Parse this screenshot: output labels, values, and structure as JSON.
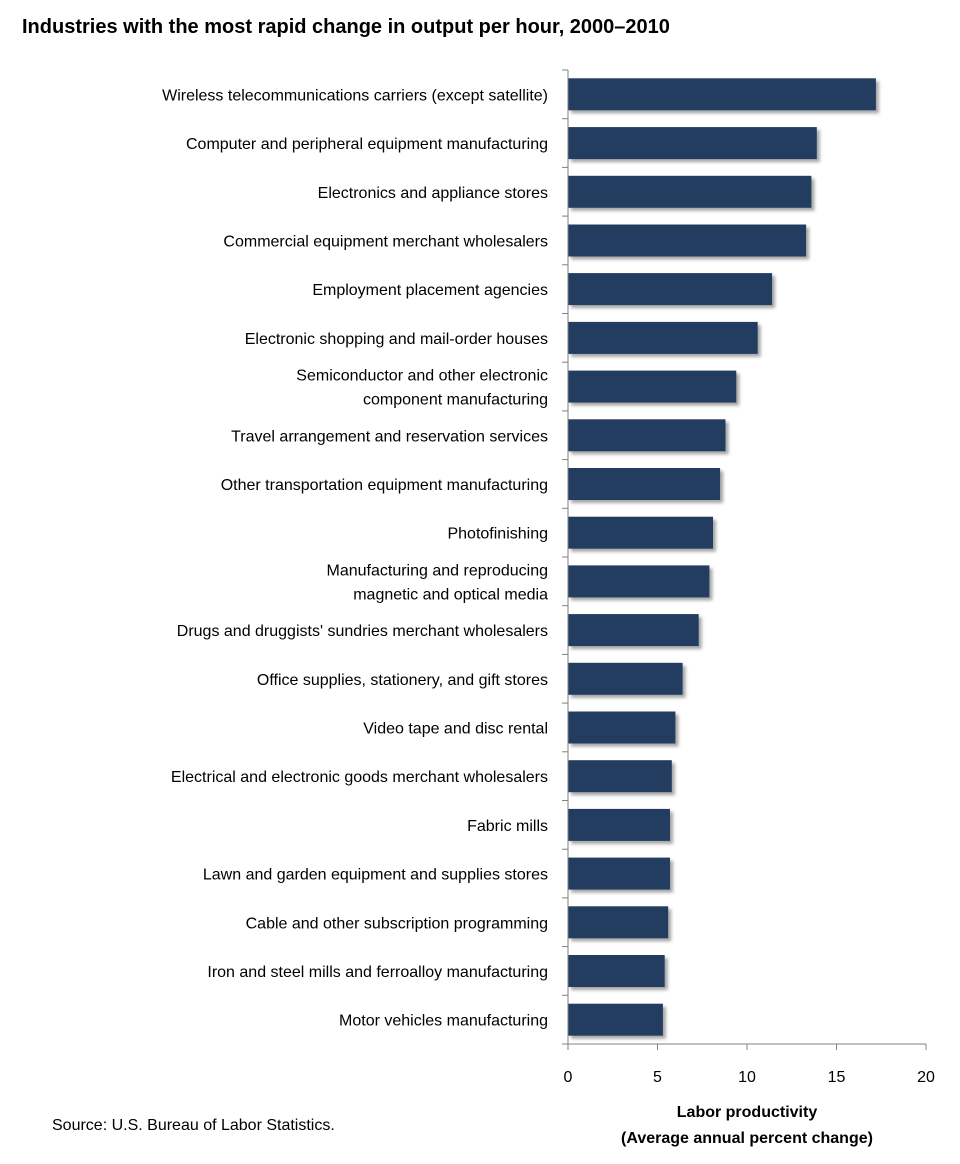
{
  "title": "Industries with the most rapid change in output per hour, 2000–2010",
  "source": "Source: U.S. Bureau of Labor Statistics.",
  "chart_data": {
    "type": "bar",
    "orientation": "horizontal",
    "title": "Industries with the most rapid change in output per hour, 2000–2010",
    "xlabel": [
      "Labor productivity",
      "(Average annual  percent change)"
    ],
    "ylabel": "",
    "xlim": [
      0,
      20
    ],
    "xticks": [
      0,
      5,
      10,
      15,
      20
    ],
    "grid": false,
    "legend": "none",
    "bar_color": "#243c5e",
    "categories": [
      [
        "Wireless telecommunications carriers (except satellite)"
      ],
      [
        "Computer and peripheral equipment manufacturing"
      ],
      [
        "Electronics and appliance stores"
      ],
      [
        "Commercial equipment merchant wholesalers"
      ],
      [
        "Employment placement agencies"
      ],
      [
        "Electronic shopping and mail-order houses"
      ],
      [
        "Semiconductor and other electronic",
        "component manufacturing"
      ],
      [
        "Travel arrangement and reservation services"
      ],
      [
        "Other transportation equipment manufacturing"
      ],
      [
        "Photofinishing"
      ],
      [
        "Manufacturing and reproducing",
        "magnetic and optical media"
      ],
      [
        "Drugs and druggists' sundries merchant wholesalers"
      ],
      [
        "Office supplies, stationery, and gift stores"
      ],
      [
        "Video tape and disc rental"
      ],
      [
        "Electrical and electronic goods merchant wholesalers"
      ],
      [
        "Fabric mills"
      ],
      [
        "Lawn and garden equipment and supplies stores"
      ],
      [
        "Cable and other subscription programming"
      ],
      [
        "Iron and steel mills and ferroalloy manufacturing"
      ],
      [
        "Motor vehicles manufacturing"
      ]
    ],
    "values": [
      17.2,
      13.9,
      13.6,
      13.3,
      11.4,
      10.6,
      9.4,
      8.8,
      8.5,
      8.1,
      7.9,
      7.3,
      6.4,
      6.0,
      5.8,
      5.7,
      5.7,
      5.6,
      5.4,
      5.3
    ]
  }
}
